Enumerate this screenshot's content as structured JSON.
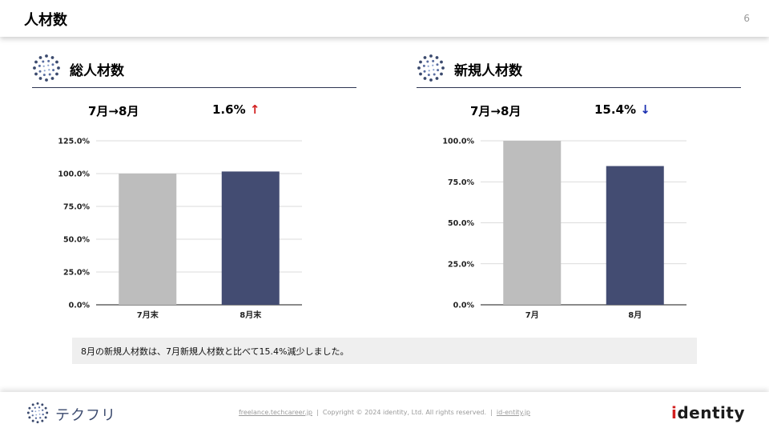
{
  "header": {
    "title": "人材数",
    "page_number": "6"
  },
  "sections": [
    {
      "title": "総人材数",
      "period": "7月→8月",
      "change": "1.6%",
      "direction_glyph": "↑",
      "direction_color": "#d21f1f",
      "chart_data": {
        "type": "bar",
        "categories": [
          "7月末",
          "8月末"
        ],
        "values": [
          100.0,
          101.6
        ],
        "colors": [
          "#bdbdbd",
          "#434c72"
        ],
        "ylim": [
          0,
          125
        ],
        "yticks": [
          0,
          25,
          50,
          75,
          100,
          125
        ],
        "ytick_labels": [
          "0.0%",
          "25.0%",
          "50.0%",
          "75.0%",
          "100.0%",
          "125.0%"
        ],
        "grid": true,
        "legend": "none"
      }
    },
    {
      "title": "新規人材数",
      "period": "7月→8月",
      "change": "15.4%",
      "direction_glyph": "↓",
      "direction_color": "#1a2fb0",
      "chart_data": {
        "type": "bar",
        "categories": [
          "7月",
          "8月"
        ],
        "values": [
          100.0,
          84.6
        ],
        "colors": [
          "#bdbdbd",
          "#434c72"
        ],
        "ylim": [
          0,
          100
        ],
        "yticks": [
          0,
          25,
          50,
          75,
          100
        ],
        "ytick_labels": [
          "0.0%",
          "25.0%",
          "50.0%",
          "75.0%",
          "100.0%"
        ],
        "grid": true,
        "legend": "none"
      }
    }
  ],
  "note": "8月の新規人材数は、7月新規人材数と比べて15.4%減少しました。",
  "footer": {
    "brand_name": "テクフリ",
    "link1": "freelance.techcareer.jp",
    "separator": "|",
    "copyright": "Copyright © 2024 identity, Ltd. All rights reserved.",
    "link2": "id-entity.jp",
    "company_logo_text": "dentity"
  },
  "colors": {
    "accent_navy": "#434c72",
    "bar_gray": "#bdbdbd",
    "up_red": "#d21f1f",
    "down_blue": "#1a2fb0"
  },
  "icons": {
    "section_logo": "dotted-circle-logo-icon",
    "brand_logo": "dotted-circle-logo-icon"
  }
}
